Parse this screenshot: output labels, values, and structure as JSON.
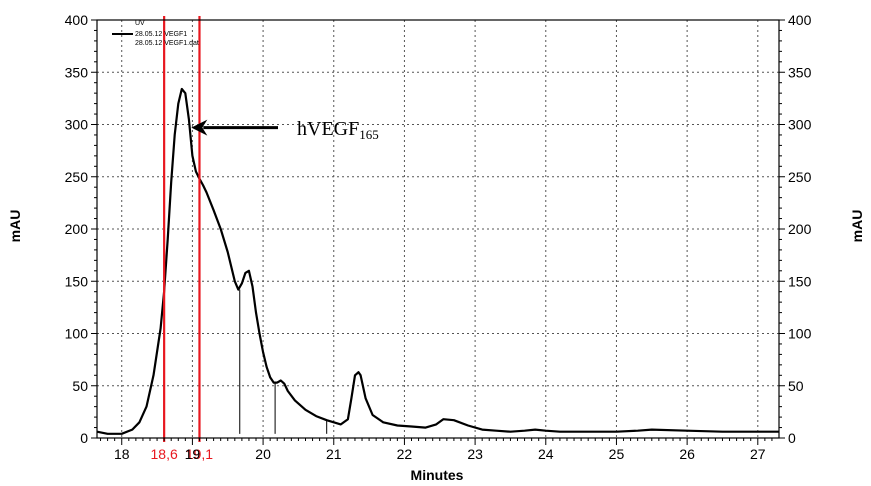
{
  "chart_data": {
    "type": "line",
    "xlabel": "Minutes",
    "ylabel": "mAU",
    "ylabel_right": "mAU",
    "xlim": [
      17.65,
      27.3
    ],
    "ylim": [
      0,
      400
    ],
    "x_ticks": [
      18,
      19,
      20,
      21,
      22,
      23,
      24,
      25,
      26,
      27
    ],
    "y_ticks": [
      0,
      50,
      100,
      150,
      200,
      250,
      300,
      350,
      400
    ],
    "grid": true,
    "legend": {
      "placement": "top-left",
      "header": "UV",
      "entries": [
        "28.05.12 VEGF1",
        "28.05.12 VEGF1.dat"
      ]
    },
    "series": [
      {
        "name": "28.05.12 VEGF1",
        "color": "#000000",
        "x": [
          17.65,
          17.8,
          18.0,
          18.15,
          18.25,
          18.35,
          18.45,
          18.55,
          18.6,
          18.65,
          18.7,
          18.75,
          18.8,
          18.85,
          18.9,
          18.95,
          19.0,
          19.05,
          19.1,
          19.15,
          19.2,
          19.3,
          19.4,
          19.5,
          19.6,
          19.65,
          19.7,
          19.75,
          19.8,
          19.85,
          19.9,
          19.95,
          20.0,
          20.05,
          20.1,
          20.15,
          20.2,
          20.25,
          20.3,
          20.35,
          20.45,
          20.6,
          20.75,
          20.9,
          21.0,
          21.1,
          21.2,
          21.25,
          21.3,
          21.35,
          21.38,
          21.45,
          21.55,
          21.7,
          21.9,
          22.1,
          22.3,
          22.45,
          22.55,
          22.7,
          22.9,
          23.1,
          23.3,
          23.5,
          23.7,
          23.85,
          24.0,
          24.2,
          24.5,
          25.0,
          25.3,
          25.5,
          26.0,
          26.5,
          27.0,
          27.3
        ],
        "y": [
          6,
          4,
          4,
          8,
          15,
          30,
          60,
          105,
          140,
          190,
          245,
          290,
          320,
          334,
          330,
          305,
          270,
          255,
          248,
          242,
          235,
          218,
          200,
          178,
          150,
          142,
          148,
          158,
          160,
          145,
          120,
          100,
          82,
          68,
          58,
          53,
          53,
          55,
          52,
          45,
          36,
          27,
          21,
          17,
          15,
          13,
          18,
          38,
          60,
          63,
          60,
          38,
          22,
          15,
          12,
          11,
          10,
          13,
          18,
          17,
          12,
          8,
          7,
          6,
          7,
          8,
          7,
          6,
          6,
          6,
          7,
          8,
          7,
          6,
          6,
          6
        ]
      }
    ],
    "baseline_drops": [
      {
        "x": 19.67,
        "y": 142
      },
      {
        "x": 20.17,
        "y": 53
      },
      {
        "x": 20.9,
        "y": 17
      }
    ],
    "markers": [
      {
        "x": 18.6,
        "label": "18,6",
        "color": "#e8171f"
      },
      {
        "x": 19.1,
        "label": "19,1",
        "color": "#e8171f"
      }
    ],
    "annotation": {
      "text": "hVEGF",
      "subscript": "165",
      "arrow_target_x": 18.9,
      "arrow_target_y": 298
    }
  }
}
